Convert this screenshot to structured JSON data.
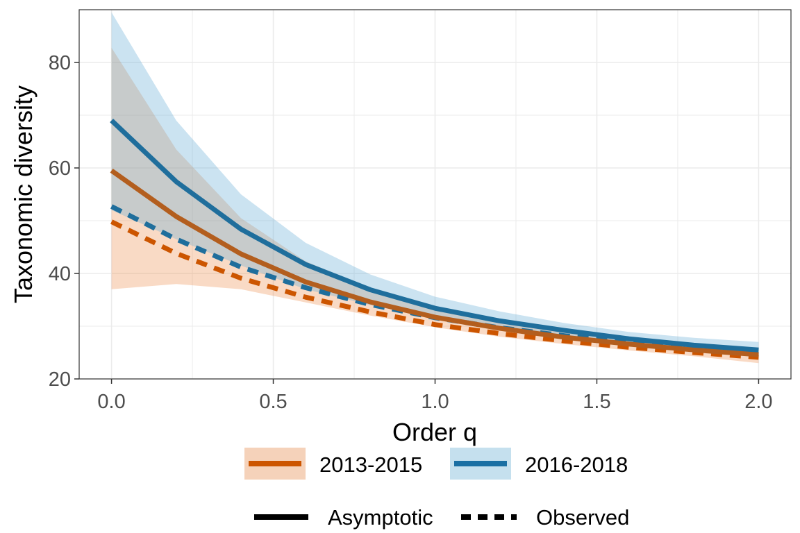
{
  "chart_data": {
    "type": "line",
    "xlabel": "Order q",
    "ylabel": "Taxonomic diversity",
    "xlim": [
      -0.1,
      2.1
    ],
    "ylim": [
      20,
      90
    ],
    "xticks": [
      "0.0",
      "0.5",
      "1.0",
      "1.5",
      "2.0"
    ],
    "yticks": [
      "20",
      "40",
      "60",
      "80"
    ],
    "grid": true,
    "legend_position": "bottom",
    "x": [
      0.0,
      0.2,
      0.4,
      0.6,
      0.8,
      1.0,
      1.2,
      1.4,
      1.6,
      1.8,
      2.0
    ],
    "series": [
      {
        "name": "2013-2015",
        "method": "Asymptotic",
        "color": "#CC5500",
        "values": [
          59.5,
          50.8,
          43.7,
          38.4,
          34.6,
          31.7,
          29.6,
          27.9,
          26.6,
          25.5,
          24.6
        ],
        "ci_lower": [
          37.0,
          38.0,
          37.0,
          34.5,
          32.0,
          29.8,
          28.0,
          26.6,
          25.4,
          24.3,
          23.0
        ],
        "ci_upper": [
          82.8,
          63.5,
          50.5,
          42.3,
          37.2,
          33.6,
          31.2,
          29.2,
          27.8,
          26.7,
          25.8
        ]
      },
      {
        "name": "2016-2018",
        "method": "Asymptotic",
        "color": "#1F6E9C",
        "values": [
          69.0,
          57.4,
          48.4,
          41.7,
          36.9,
          33.4,
          31.0,
          29.2,
          27.6,
          26.4,
          25.5
        ],
        "ci_lower": [
          52.0,
          46.5,
          41.5,
          37.0,
          34.0,
          31.5,
          29.5,
          28.0,
          26.7,
          25.6,
          24.5
        ],
        "ci_upper": [
          89.5,
          69.0,
          55.0,
          45.8,
          39.8,
          35.6,
          32.8,
          30.6,
          28.9,
          27.8,
          27.0
        ]
      },
      {
        "name": "2013-2015",
        "method": "Observed",
        "color": "#CC5500",
        "values": [
          49.8,
          43.8,
          39.1,
          35.5,
          32.7,
          30.3,
          28.6,
          27.2,
          26.0,
          25.0,
          24.1
        ]
      },
      {
        "name": "2016-2018",
        "method": "Observed",
        "color": "#1F6E9C",
        "values": [
          52.7,
          46.5,
          41.2,
          37.3,
          34.1,
          31.6,
          29.7,
          28.2,
          27.0,
          26.0,
          25.1
        ]
      }
    ],
    "legend": {
      "colors": [
        {
          "label": "2013-2015",
          "line": "#CC5500",
          "fill": "#F5D2BA"
        },
        {
          "label": "2016-2018",
          "line": "#1A6FA3",
          "fill": "#C5E0EE"
        }
      ],
      "linetypes": [
        {
          "label": "Asymptotic",
          "style": "solid"
        },
        {
          "label": "Observed",
          "style": "dashed"
        }
      ]
    },
    "colors": {
      "band_2013": "rgba(236,139,76,0.32)",
      "band_2016": "rgba(107,174,214,0.35)",
      "line_2013": "#B35E1E",
      "line_2016": "#1F6E9C",
      "dash_2013": "#CC5500",
      "dash_2016": "#1F6E9C",
      "grid": "#EBEBEB",
      "panel_border": "#333333"
    }
  }
}
